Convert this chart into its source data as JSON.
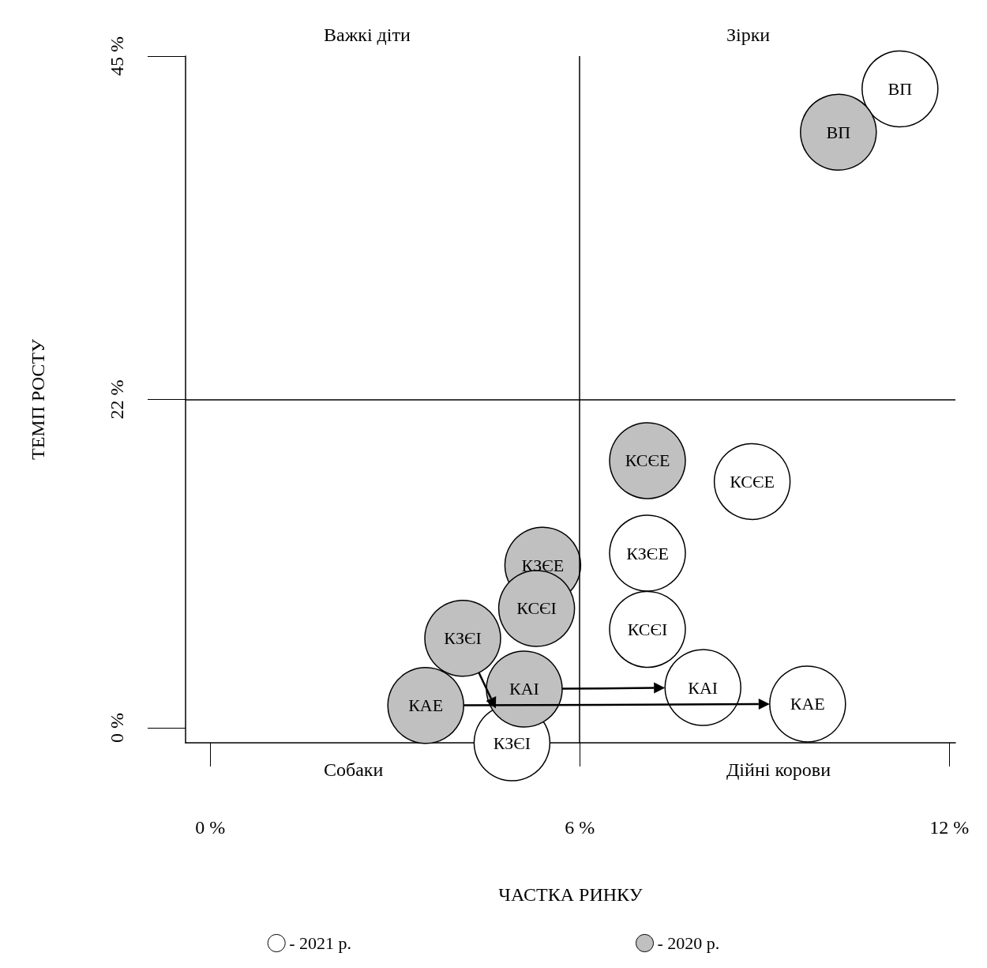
{
  "chart_data": {
    "type": "scatter",
    "xlabel": "ЧАСТКА РИНКУ",
    "ylabel": "ТЕМП РОСТУ",
    "annotations": [
      "Важкі діти",
      "Зірки",
      "Собаки",
      "Дійні корови"
    ],
    "xlim": [
      -0.4,
      12.1
    ],
    "xticks": [
      {
        "value": 0,
        "label": "0 %"
      },
      {
        "value": 6,
        "label": "6 %"
      },
      {
        "value": 12,
        "label": "12 %"
      }
    ],
    "ylim": [
      -1,
      45
    ],
    "yticks": [
      {
        "value": 0,
        "label": "0 %"
      },
      {
        "value": 22,
        "label": "22 %"
      },
      {
        "value": 45,
        "label": "45 %"
      }
    ],
    "ref_lines": [
      {
        "axis": "x",
        "value": 6,
        "color": "#000000"
      },
      {
        "axis": "y",
        "value": 22,
        "color": "#000000"
      }
    ],
    "marker": "circle",
    "grid": false,
    "legend": "bottom",
    "series": [
      {
        "name": "- 2021 р.",
        "color": "#ffffff",
        "x": [
          11.2,
          8.8,
          7.1,
          7.1,
          8.0,
          9.7,
          4.9
        ],
        "values": [
          42.8,
          16.5,
          11.7,
          6.6,
          2.7,
          1.6,
          -1.0
        ],
        "value_labels": [
          "ВП",
          "КСЄЕ",
          "КЗЄЕ",
          "КСЄІ",
          "КАІ",
          "КАЕ",
          "КЗЄІ"
        ]
      },
      {
        "name": "- 2020 р.",
        "color": "#c0c0c0",
        "x": [
          10.2,
          7.1,
          5.4,
          5.3,
          5.1,
          3.5,
          4.1
        ],
        "values": [
          39.9,
          17.9,
          10.9,
          8.0,
          2.6,
          1.5,
          6.0
        ],
        "value_labels": [
          "ВП",
          "КСЄЕ",
          "КЗЄЕ",
          "КСЄІ",
          "КАІ",
          "КАЕ",
          "КЗЄІ"
        ]
      }
    ]
  }
}
